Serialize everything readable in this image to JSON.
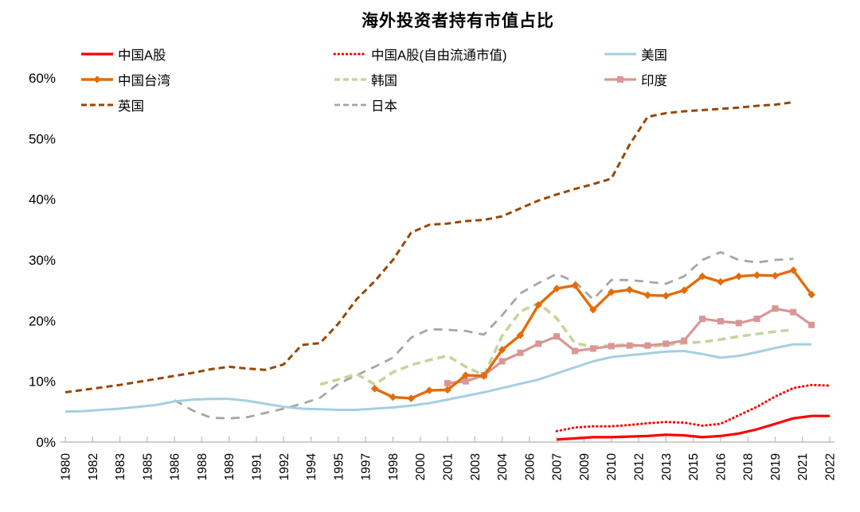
{
  "title": "海外投资者持有市值占比",
  "chart_data": {
    "type": "line",
    "title": "海外投资者持有市值占比",
    "grid": false,
    "legend_position": "top-left-3-columns",
    "y_axis": {
      "min": 0,
      "max": 60,
      "unit": "%",
      "tick_labels": [
        "0%",
        "10%",
        "20%",
        "30%",
        "40%",
        "50%",
        "60%"
      ]
    },
    "x_axis": {
      "start": 1980,
      "end": 2022,
      "tick_labels": [
        "1980",
        "1982",
        "1983",
        "1985",
        "1986",
        "1988",
        "1989",
        "1991",
        "1992",
        "1994",
        "1995",
        "1997",
        "1998",
        "2000",
        "2001",
        "2003",
        "2004",
        "2006",
        "2007",
        "2009",
        "2010",
        "2012",
        "2013",
        "2015",
        "2016",
        "2018",
        "2019",
        "2021",
        "2022"
      ]
    },
    "draw_order": [
      "uk",
      "japan",
      "korea",
      "us",
      "india",
      "taiwan",
      "china-a-free-float",
      "china-a"
    ],
    "series": [
      {
        "id": "china-a",
        "name": "中国A股",
        "color": "#fe0000",
        "style": "solid",
        "dash": "",
        "line_width": 3.2,
        "marker": "none",
        "start_year": 2007,
        "values": [
          0.4,
          0.6,
          0.8,
          0.8,
          0.9,
          1.0,
          1.2,
          1.1,
          0.8,
          1.0,
          1.4,
          2.1,
          3.0,
          3.9,
          4.3,
          4.3
        ]
      },
      {
        "id": "china-a-free-float",
        "name": "中国A股(自由流通市值)",
        "color": "#fe0000",
        "style": "dotted",
        "dash": "0.5 4.6",
        "line_width": 3,
        "marker": "none",
        "start_year": 2007,
        "values": [
          1.8,
          2.4,
          2.6,
          2.6,
          2.8,
          3.1,
          3.3,
          3.2,
          2.7,
          3.0,
          4.4,
          5.8,
          7.5,
          8.9,
          9.4,
          9.3
        ]
      },
      {
        "id": "us",
        "name": "美国",
        "color": "#a5cfe1",
        "style": "solid",
        "dash": "",
        "line_width": 3,
        "marker": "none",
        "start_year": 1980,
        "values": [
          5.0,
          5.1,
          5.3,
          5.5,
          5.8,
          6.1,
          6.7,
          7.0,
          7.1,
          7.1,
          6.8,
          6.3,
          5.8,
          5.5,
          5.4,
          5.3,
          5.3,
          5.5,
          5.7,
          6.0,
          6.4,
          7.0,
          7.6,
          8.2,
          8.9,
          9.6,
          10.3,
          11.3,
          12.3,
          13.3,
          14.0,
          14.3,
          14.6,
          14.9,
          15.0,
          14.5,
          13.9,
          14.2,
          14.8,
          15.5,
          16.1,
          16.1
        ]
      },
      {
        "id": "taiwan",
        "name": "中国台湾",
        "color": "#e36c0a",
        "style": "solid",
        "dash": "",
        "line_width": 3.4,
        "marker": "diamond",
        "start_year": 1997,
        "values": [
          8.8,
          7.4,
          7.2,
          8.5,
          8.6,
          11.0,
          10.9,
          15.2,
          17.6,
          22.6,
          25.3,
          25.8,
          21.8,
          24.7,
          25.1,
          24.2,
          24.1,
          25.0,
          27.3,
          26.4,
          27.3,
          27.5,
          27.4,
          28.3,
          24.3
        ]
      },
      {
        "id": "korea",
        "name": "韩国",
        "color": "#c3d69b",
        "style": "dashed",
        "dash": "10 6",
        "line_width": 3.6,
        "marker": "none",
        "start_year": 1994,
        "values": [
          9.5,
          10.3,
          11.2,
          9.5,
          11.5,
          12.7,
          13.5,
          14.2,
          12.4,
          11.0,
          17.5,
          21.5,
          22.9,
          20.4,
          16.3,
          15.7,
          15.9,
          16.1,
          15.7,
          16.0,
          16.3,
          16.5,
          16.9,
          17.4,
          17.8,
          18.2,
          18.5
        ]
      },
      {
        "id": "india",
        "name": "印度",
        "color": "#d99694",
        "style": "solid",
        "dash": "",
        "line_width": 3.2,
        "marker": "square",
        "start_year": 2001,
        "values": [
          9.7,
          10.0,
          11.0,
          13.3,
          14.7,
          16.2,
          17.4,
          15.0,
          15.4,
          15.8,
          15.9,
          15.9,
          16.2,
          16.7,
          20.3,
          19.9,
          19.6,
          20.3,
          22.0,
          21.4,
          19.3
        ]
      },
      {
        "id": "uk",
        "name": "英国",
        "color": "#974706",
        "style": "dashed",
        "dash": "8 5",
        "line_width": 3,
        "marker": "none",
        "start_year": 1980,
        "values": [
          8.2,
          8.6,
          9.0,
          9.4,
          9.9,
          10.4,
          10.9,
          11.4,
          12.0,
          12.4,
          12.1,
          11.9,
          12.8,
          16.0,
          16.3,
          19.5,
          23.5,
          26.5,
          30.0,
          34.5,
          35.8,
          36.0,
          36.4,
          36.6,
          37.2,
          38.5,
          39.8,
          40.8,
          41.7,
          42.5,
          43.4,
          49.0,
          53.6,
          54.2,
          54.5,
          54.7,
          54.9,
          55.1,
          55.4,
          55.6,
          56.0
        ]
      },
      {
        "id": "japan",
        "name": "日本",
        "color": "#a6a6a6",
        "style": "dashed",
        "dash": "11 8",
        "line_width": 2.8,
        "marker": "none",
        "start_year": 1986,
        "values": [
          6.9,
          5.2,
          4.0,
          3.9,
          4.1,
          4.8,
          5.5,
          6.3,
          7.3,
          9.6,
          11.0,
          12.4,
          13.9,
          17.2,
          18.6,
          18.5,
          18.3,
          17.7,
          20.9,
          24.5,
          26.2,
          27.7,
          26.4,
          23.5,
          26.7,
          26.7,
          26.4,
          26.1,
          27.3,
          30.0,
          31.3,
          30.0,
          29.6,
          30.0,
          30.2
        ]
      }
    ]
  }
}
